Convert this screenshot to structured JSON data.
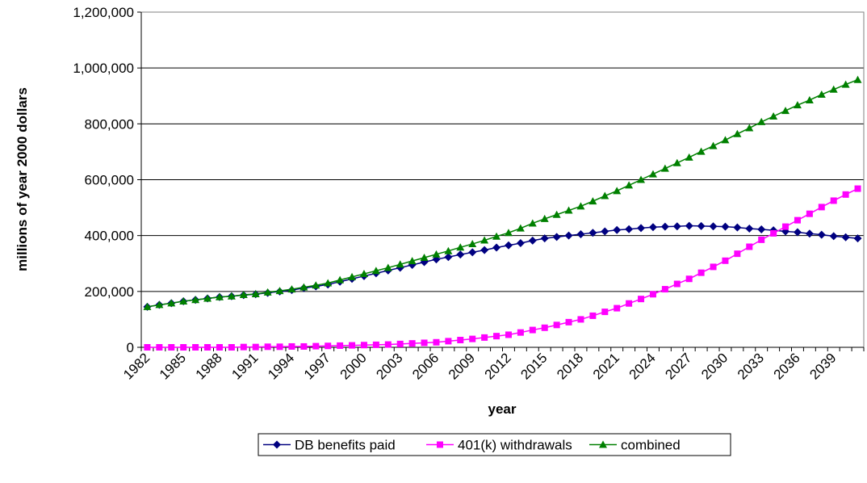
{
  "chart_data": {
    "type": "line",
    "y_label": "millions of year 2000 dollars",
    "x_label": "year",
    "categories": [
      "1982",
      null,
      null,
      "1985",
      null,
      null,
      "1988",
      null,
      null,
      "1991",
      null,
      null,
      "1994",
      null,
      null,
      "1997",
      null,
      null,
      "2000",
      null,
      null,
      "2003",
      null,
      null,
      "2006",
      null,
      null,
      "2009",
      null,
      null,
      "2012",
      null,
      null,
      "2015",
      null,
      null,
      "2018",
      null,
      null,
      "2021",
      null,
      null,
      "2024",
      null,
      null,
      "2027",
      null,
      null,
      "2030",
      null,
      null,
      "2033",
      null,
      null,
      "2036",
      null,
      null,
      "2039",
      null,
      null
    ],
    "series": [
      {
        "name": "DB benefits paid",
        "color": "#000080",
        "marker": "diamond",
        "values": [
          145000,
          152000,
          158000,
          165000,
          170000,
          175000,
          180000,
          183000,
          187000,
          190000,
          195000,
          200000,
          205000,
          212000,
          218000,
          225000,
          235000,
          245000,
          255000,
          265000,
          275000,
          285000,
          295000,
          305000,
          315000,
          323000,
          332000,
          340000,
          348000,
          357000,
          365000,
          373000,
          382000,
          390000,
          395000,
          400000,
          405000,
          410000,
          415000,
          420000,
          423000,
          427000,
          430000,
          432000,
          433000,
          435000,
          434000,
          433000,
          432000,
          429000,
          425000,
          422000,
          419000,
          415000,
          412000,
          407000,
          403000,
          398000,
          394000,
          390000
        ]
      },
      {
        "name": "401(k) withdrawals",
        "color": "#ff00ff",
        "marker": "square",
        "values": [
          0,
          0,
          0,
          0,
          0,
          0,
          0,
          0,
          1000,
          1000,
          2000,
          2000,
          3000,
          3000,
          4000,
          5000,
          6000,
          7000,
          8000,
          9000,
          10000,
          12000,
          14000,
          16000,
          18000,
          22000,
          26000,
          30000,
          35000,
          40000,
          45000,
          53000,
          62000,
          70000,
          80000,
          90000,
          100000,
          113000,
          127000,
          140000,
          157000,
          173000,
          190000,
          208000,
          227000,
          245000,
          267000,
          288000,
          310000,
          335000,
          360000,
          385000,
          408000,
          432000,
          455000,
          478000,
          502000,
          525000,
          547000,
          568000
        ]
      },
      {
        "name": "combined",
        "color": "#008000",
        "marker": "triangle",
        "values": [
          145000,
          152000,
          158000,
          165000,
          170000,
          175000,
          180000,
          183000,
          188000,
          191000,
          197000,
          202000,
          208000,
          215000,
          222000,
          230000,
          241000,
          252000,
          263000,
          274000,
          285000,
          297000,
          309000,
          321000,
          333000,
          345000,
          358000,
          370000,
          383000,
          397000,
          410000,
          426000,
          444000,
          460000,
          475000,
          490000,
          505000,
          523000,
          542000,
          560000,
          580000,
          600000,
          620000,
          640000,
          660000,
          680000,
          701000,
          721000,
          742000,
          764000,
          785000,
          807000,
          827000,
          847000,
          867000,
          885000,
          905000,
          923000,
          941000,
          958000
        ]
      }
    ],
    "ylim": [
      0,
      1200000
    ],
    "yticks": [
      0,
      {
        "value": 200000,
        "label": "200,000"
      },
      {
        "value": 400000,
        "label": "400,000"
      },
      {
        "value": 600000,
        "label": "600,000"
      },
      {
        "value": 800000,
        "label": "800,000"
      },
      {
        "value": 1000000,
        "label": "1,000,000"
      },
      {
        "value": 1200000,
        "label": "1,200,000"
      }
    ],
    "grid": true,
    "legend": "bottom"
  }
}
